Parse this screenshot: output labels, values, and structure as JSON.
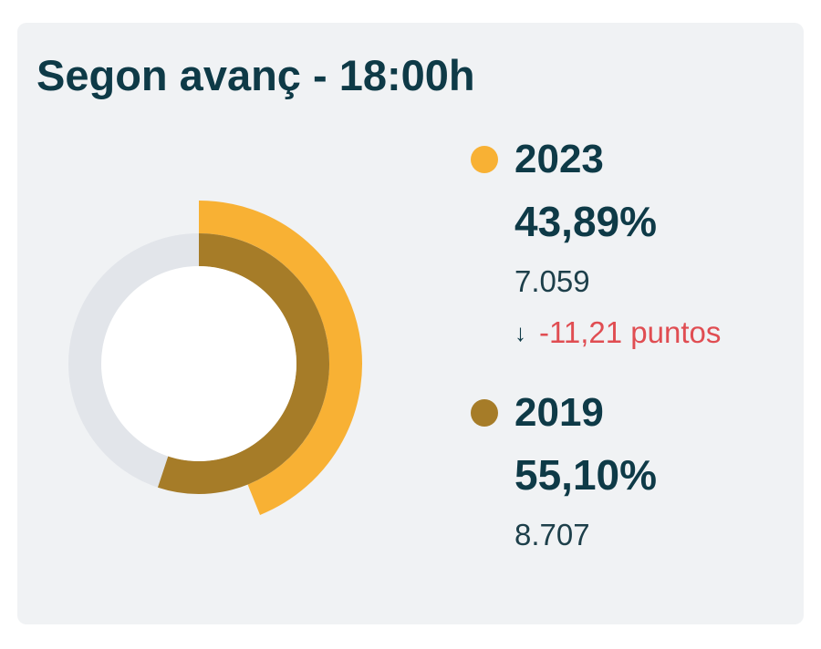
{
  "title": "Segon avanç - 18:00h",
  "colors": {
    "series_2023": "#f8b134",
    "series_2019": "#a67c28",
    "track": "#e2e5ea",
    "negative": "#e04d52"
  },
  "series": [
    {
      "year": "2023",
      "percent": "43,89%",
      "count": "7.059",
      "change_icon": "arrow-down-icon",
      "change": "-11,21 puntos"
    },
    {
      "year": "2019",
      "percent": "55,10%",
      "count": "8.707"
    }
  ],
  "chart_data": {
    "type": "pie",
    "title": "Segon avanç - 18:00h",
    "subtitle": "",
    "style": "concentric radial progress rings",
    "max": 100,
    "series": [
      {
        "name": "2023",
        "value": 43.89,
        "color": "#f8b134"
      },
      {
        "name": "2019",
        "value": 55.1,
        "color": "#a67c28"
      }
    ],
    "legend": "right"
  }
}
